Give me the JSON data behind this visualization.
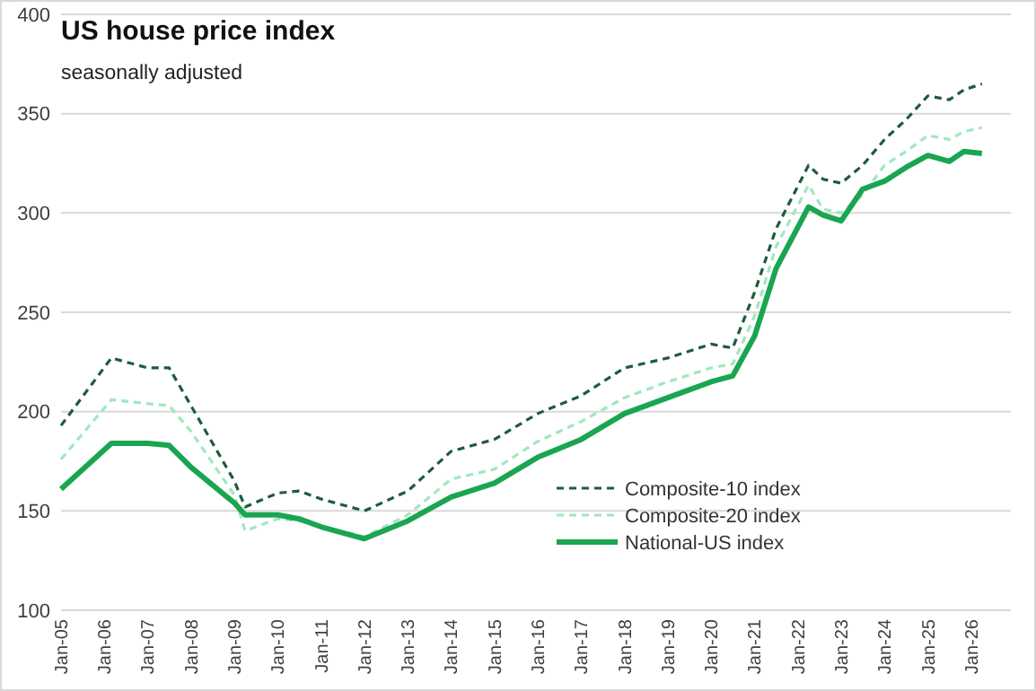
{
  "chart_data": {
    "type": "line",
    "title": "US house price index",
    "subtitle": "seasonally adjusted",
    "x": [
      "2005-01",
      "2006-03",
      "2007-01",
      "2007-07",
      "2008-01",
      "2009-01",
      "2009-04",
      "2010-01",
      "2010-07",
      "2011-01",
      "2012-01",
      "2013-01",
      "2014-01",
      "2015-01",
      "2016-01",
      "2017-01",
      "2018-01",
      "2019-01",
      "2020-01",
      "2020-07",
      "2021-01",
      "2021-07",
      "2022-04",
      "2022-08",
      "2023-01",
      "2023-07",
      "2024-01",
      "2024-07",
      "2025-01",
      "2025-07",
      "2025-11",
      "2026-04"
    ],
    "series": [
      {
        "name": "Composite-10 index",
        "color": "#1e5c3a",
        "line_style": "dashed",
        "values": [
          193,
          227,
          222,
          222,
          203,
          165,
          152,
          159,
          160,
          156,
          150,
          160,
          180,
          186,
          199,
          208,
          222,
          227,
          234,
          232,
          260,
          292,
          324,
          317,
          315,
          324,
          337,
          347,
          359,
          357,
          362,
          365
        ]
      },
      {
        "name": "Composite-20 index",
        "color": "#9fe8bf",
        "line_style": "dashed",
        "values": [
          176,
          206,
          204,
          203,
          190,
          158,
          140,
          146,
          145,
          142,
          137,
          148,
          166,
          171,
          185,
          195,
          207,
          215,
          222,
          224,
          248,
          283,
          314,
          302,
          300,
          309,
          324,
          331,
          339,
          337,
          341,
          343
        ]
      },
      {
        "name": "National-US index",
        "color": "#1aa551",
        "line_style": "solid",
        "values": [
          161,
          184,
          184,
          183,
          172,
          154,
          148,
          148,
          146,
          142,
          136,
          145,
          157,
          164,
          177,
          186,
          199,
          207,
          215,
          218,
          238,
          272,
          303,
          299,
          296,
          312,
          316,
          323,
          329,
          326,
          331,
          330
        ]
      }
    ],
    "xlim": [
      "2005-01",
      "2026-12"
    ],
    "xticks": [
      {
        "value": "2005-01",
        "label": "Jan-05"
      },
      {
        "value": "2006-01",
        "label": "Jan-06"
      },
      {
        "value": "2007-01",
        "label": "Jan-07"
      },
      {
        "value": "2008-01",
        "label": "Jan-08"
      },
      {
        "value": "2009-01",
        "label": "Jan-09"
      },
      {
        "value": "2010-01",
        "label": "Jan-10"
      },
      {
        "value": "2011-01",
        "label": "Jan-11"
      },
      {
        "value": "2012-01",
        "label": "Jan-12"
      },
      {
        "value": "2013-01",
        "label": "Jan-13"
      },
      {
        "value": "2014-01",
        "label": "Jan-14"
      },
      {
        "value": "2015-01",
        "label": "Jan-15"
      },
      {
        "value": "2016-01",
        "label": "Jan-16"
      },
      {
        "value": "2017-01",
        "label": "Jan-17"
      },
      {
        "value": "2018-01",
        "label": "Jan-18"
      },
      {
        "value": "2019-01",
        "label": "Jan-19"
      },
      {
        "value": "2020-01",
        "label": "Jan-20"
      },
      {
        "value": "2021-01",
        "label": "Jan-21"
      },
      {
        "value": "2022-01",
        "label": "Jan-22"
      },
      {
        "value": "2023-01",
        "label": "Jan-23"
      },
      {
        "value": "2024-01",
        "label": "Jan-24"
      },
      {
        "value": "2025-01",
        "label": "Jan-25"
      },
      {
        "value": "2026-01",
        "label": "Jan-26"
      }
    ],
    "ylim": [
      100,
      400
    ],
    "yticks": [
      100,
      150,
      200,
      250,
      300,
      350,
      400
    ],
    "grid": "y",
    "legend": "bottom right"
  }
}
